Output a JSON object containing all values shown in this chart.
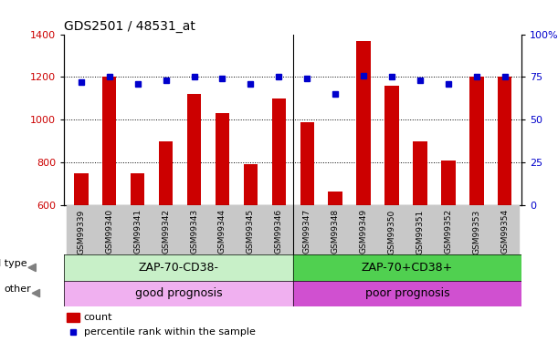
{
  "title": "GDS2501 / 48531_at",
  "samples": [
    "GSM99339",
    "GSM99340",
    "GSM99341",
    "GSM99342",
    "GSM99343",
    "GSM99344",
    "GSM99345",
    "GSM99346",
    "GSM99347",
    "GSM99348",
    "GSM99349",
    "GSM99350",
    "GSM99351",
    "GSM99352",
    "GSM99353",
    "GSM99354"
  ],
  "counts": [
    750,
    1200,
    750,
    900,
    1120,
    1030,
    790,
    1100,
    990,
    665,
    1370,
    1160,
    900,
    810,
    1200,
    1200
  ],
  "percentile_ranks": [
    72,
    75,
    71,
    73,
    75,
    74,
    71,
    75,
    74,
    65,
    76,
    75,
    73,
    71,
    75,
    75
  ],
  "bar_color": "#cc0000",
  "dot_color": "#0000cc",
  "ylim_left": [
    600,
    1400
  ],
  "ylim_right": [
    0,
    100
  ],
  "yticks_left": [
    600,
    800,
    1000,
    1200,
    1400
  ],
  "yticks_right": [
    0,
    25,
    50,
    75,
    100
  ],
  "cell_type_labels": [
    "ZAP-70-CD38-",
    "ZAP-70+CD38+"
  ],
  "cell_type_color_left": "#c8f0c8",
  "cell_type_color_right": "#50d050",
  "other_labels": [
    "good prognosis",
    "poor prognosis"
  ],
  "other_color_left": "#f0b0f0",
  "other_color_right": "#d050d0",
  "split_index": 8,
  "legend_count_label": "count",
  "legend_pct_label": "percentile rank within the sample",
  "tick_label_color_left": "#cc0000",
  "tick_label_color_right": "#0000cc",
  "xticklabel_bg": "#c8c8c8",
  "grid_yticks": [
    800,
    1000,
    1200
  ]
}
